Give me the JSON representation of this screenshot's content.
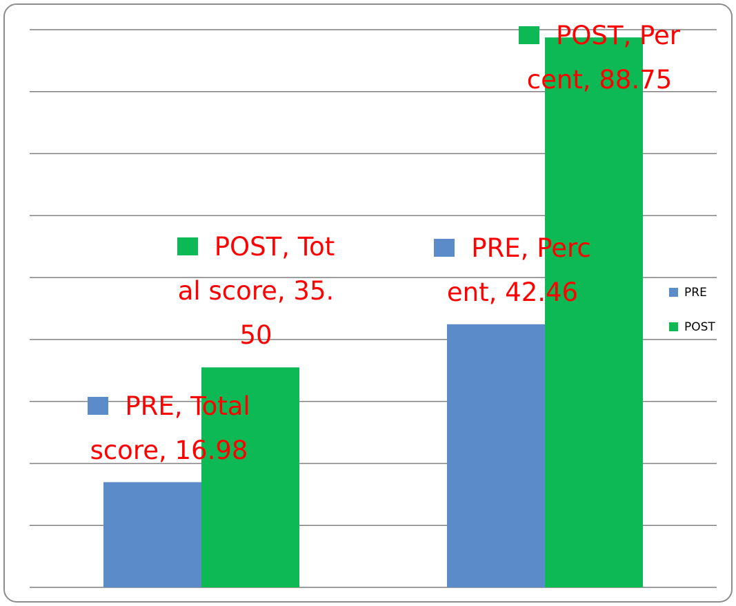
{
  "chart_data": {
    "type": "bar",
    "categories": [
      null,
      null
    ],
    "series": [
      {
        "name": "PRE",
        "color": "#5b8bc8",
        "values": [
          16.98,
          42.46
        ],
        "value_labels": [
          "PRE, Total score, 16.98",
          "PRE, Percent, 42.46"
        ]
      },
      {
        "name": "POST",
        "color": "#0db954",
        "values": [
          35.5,
          88.75
        ],
        "value_labels": [
          "POST, Total score, 35.50",
          "POST, Percent, 88.75"
        ]
      }
    ],
    "ylim": [
      0,
      90
    ],
    "yticks": [
      0,
      10,
      20,
      30,
      40,
      50,
      60,
      70,
      80,
      90
    ],
    "grid": true,
    "legend": "right"
  }
}
